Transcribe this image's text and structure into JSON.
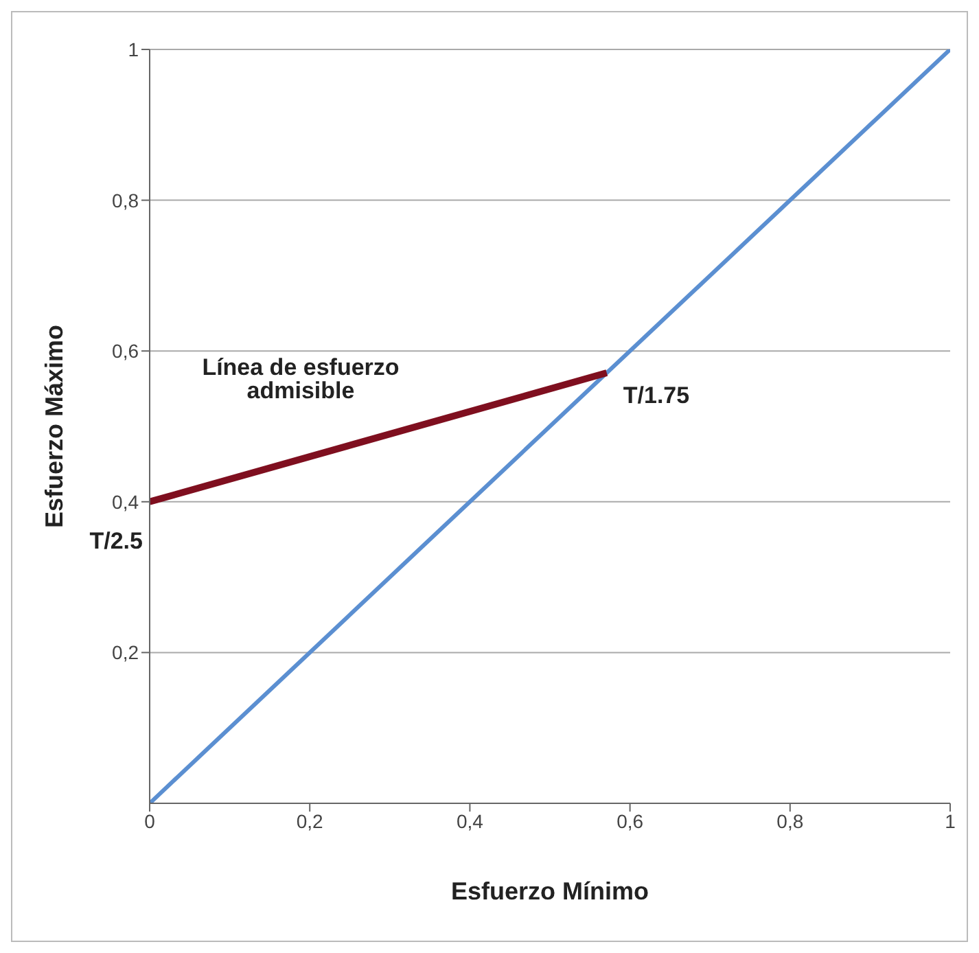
{
  "chart_data": {
    "type": "line",
    "xlabel": "Esfuerzo Mínimo",
    "ylabel": "Esfuerzo Máximo",
    "xlim": [
      0,
      1
    ],
    "ylim": [
      0,
      1
    ],
    "xticks": [
      0,
      {
        "value": 0.2,
        "label": "0,2"
      },
      {
        "value": 0.4,
        "label": "0,4"
      },
      {
        "value": 0.6,
        "label": "0,6"
      },
      {
        "value": 0.8,
        "label": "0,8"
      },
      1
    ],
    "yticks": [
      {
        "value": 0.2,
        "label": "0,2"
      },
      {
        "value": 0.4,
        "label": "0,4"
      },
      {
        "value": 0.6,
        "label": "0,6"
      },
      {
        "value": 0.8,
        "label": "0,8"
      },
      1
    ],
    "grid": "y",
    "marker": "none",
    "line_style": "solid",
    "series": [
      {
        "color": "#5b8fd1",
        "x": [
          0,
          1
        ],
        "values": [
          0,
          1
        ]
      },
      {
        "color": "#7f0f1f",
        "x": [
          0,
          0.571
        ],
        "values": [
          0.4,
          0.571
        ]
      }
    ],
    "annotations": [
      "Línea de esfuerzo admisible",
      {
        "text": "T/1.75",
        "x": 0.571,
        "y": 0.571
      },
      {
        "text": "T/2.5",
        "x": 0,
        "y": 0.4
      }
    ]
  }
}
